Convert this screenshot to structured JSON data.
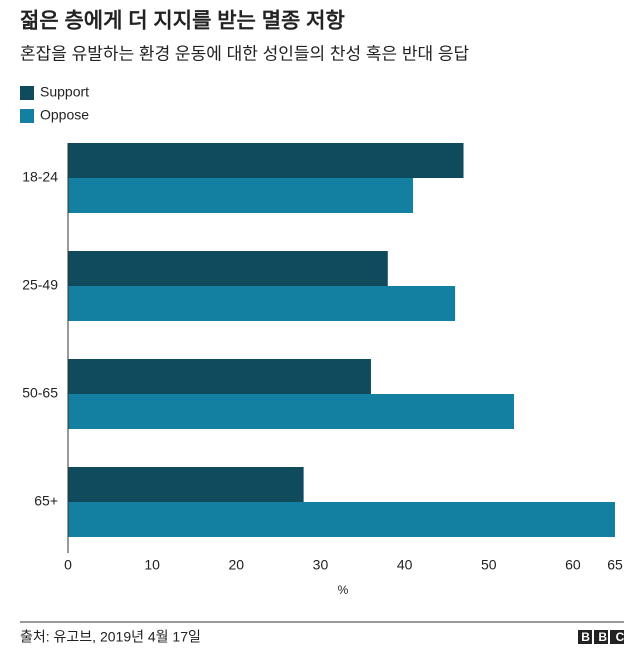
{
  "chart_data": {
    "type": "hbar",
    "title": "젊은 층에게 더 지지를 받는 멸종 저항",
    "subtitle": "혼잡을 유발하는 환경 운동에 대한 성인들의 찬성 혹은 반대 응답",
    "categories": [
      "18-24",
      "25-49",
      "50-65",
      "65+"
    ],
    "series": [
      {
        "name": "Support",
        "color": "#0f4b5c",
        "values": [
          47,
          38,
          36,
          28
        ]
      },
      {
        "name": "Oppose",
        "color": "#1380a1",
        "values": [
          41,
          46,
          53,
          65
        ]
      }
    ],
    "xlim": [
      0,
      65
    ],
    "xticks": [
      0,
      10,
      20,
      30,
      40,
      50,
      60,
      65
    ],
    "xlabel": "%",
    "grid": false,
    "source": "출처: 유고브, 2019년 4월 17일",
    "logo": "BBC"
  }
}
